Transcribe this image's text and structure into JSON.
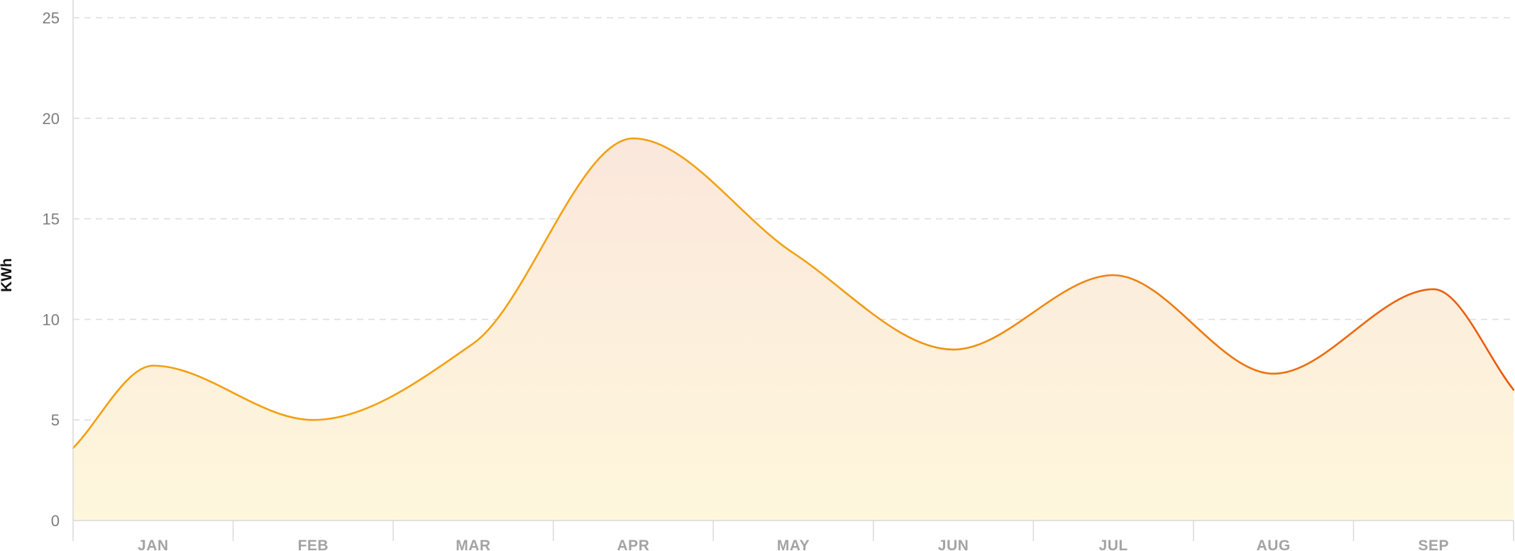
{
  "chart_data": {
    "type": "area",
    "title": "",
    "xlabel": "",
    "ylabel": "KWh",
    "ylim": [
      0,
      25
    ],
    "y_ticks": [
      0,
      5,
      10,
      15,
      20,
      25
    ],
    "categories": [
      "JAN",
      "FEB",
      "MAR",
      "APR",
      "MAY",
      "JUN",
      "JUL",
      "AUG",
      "SEP"
    ],
    "grid": "horizontal-dashed",
    "series": [
      {
        "x": [
          0,
          0.5,
          1.5,
          2.5,
          3.5,
          4.5,
          5.5,
          6.5,
          7.5,
          8.5,
          9.0
        ],
        "values": [
          3.6,
          7.7,
          5.0,
          8.8,
          19.0,
          13.3,
          8.5,
          12.2,
          7.3,
          11.5,
          6.5
        ]
      }
    ],
    "colors": {
      "line_start": "#f59e0b",
      "line_end": "#ea580c",
      "fill_top": "#fbe7dc",
      "fill_bottom": "#fef7dc",
      "grid": "#dedede",
      "axis": "#d9d9d9"
    }
  }
}
